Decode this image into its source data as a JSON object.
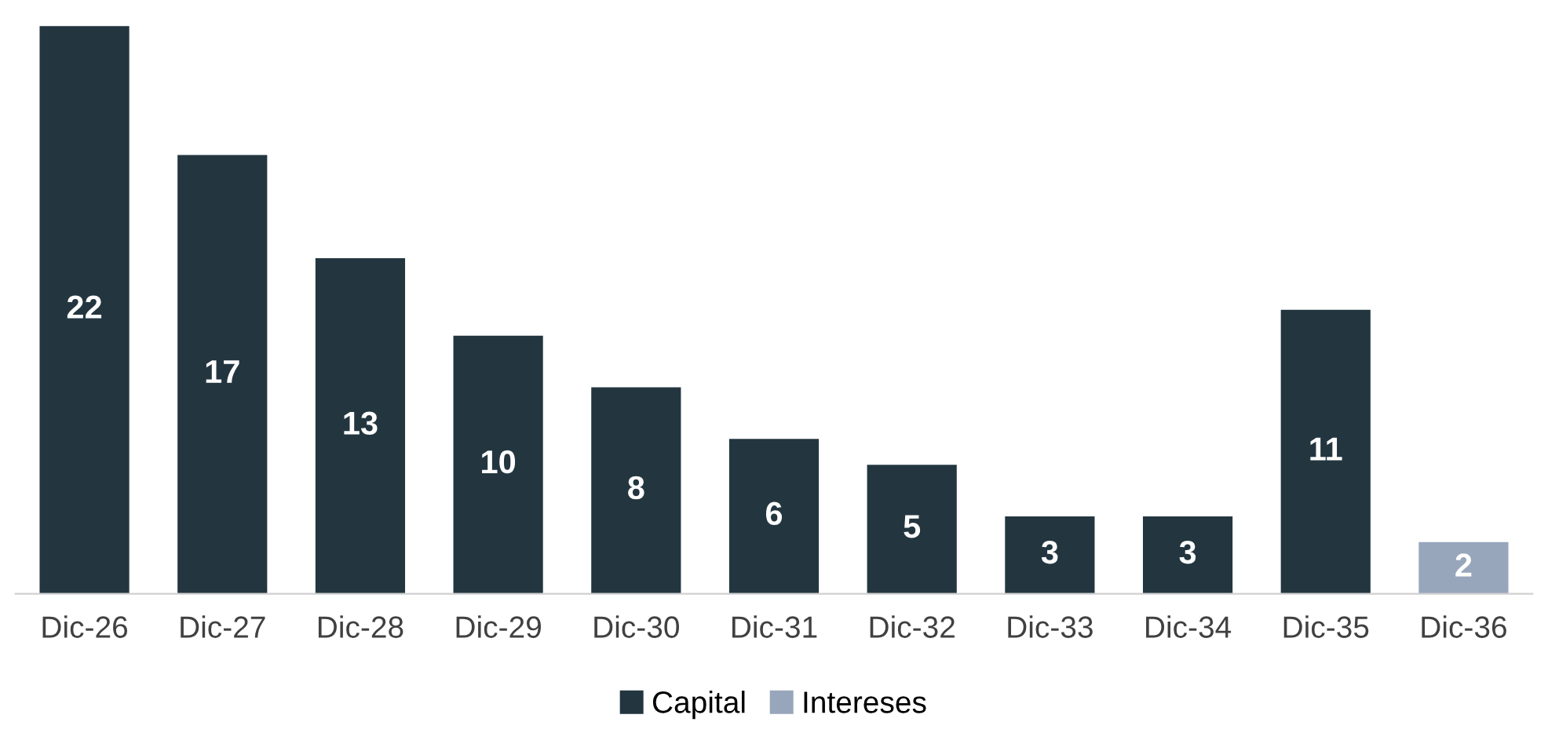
{
  "chart_data": {
    "type": "bar",
    "stacked": true,
    "data_labels": true,
    "legend": "bottom",
    "grid": false,
    "tick_labels": "x",
    "categories": [
      "Dic-26",
      "Dic-27",
      "Dic-28",
      "Dic-29",
      "Dic-30",
      "Dic-31",
      "Dic-32",
      "Dic-33",
      "Dic-34",
      "Dic-35",
      "Dic-36"
    ],
    "series": [
      {
        "name": "Capital",
        "color": "#233640",
        "values": [
          22,
          17,
          13,
          10,
          8,
          6,
          5,
          3,
          3,
          11,
          null
        ]
      },
      {
        "name": "Intereses",
        "color": "#97a6bb",
        "values": [
          null,
          null,
          null,
          null,
          null,
          null,
          null,
          null,
          null,
          null,
          2
        ]
      }
    ]
  }
}
